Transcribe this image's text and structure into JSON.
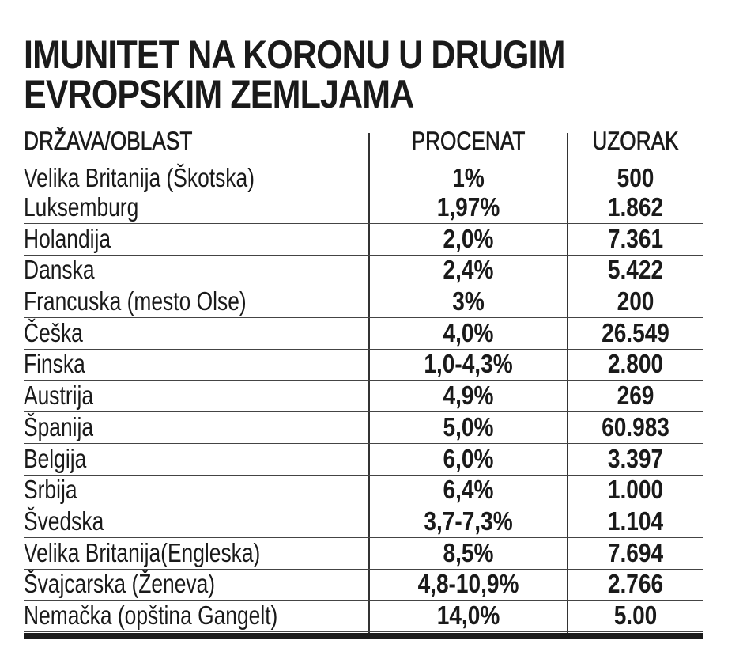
{
  "title_line1": "IMUNITET NA KORONU U DRUGIM",
  "title_line2": "EVROPSKIM ZEMLJAMA",
  "chart_data": {
    "type": "table",
    "title": "IMUNITET NA KORONU U DRUGIM EVROPSKIM ZEMLJAMA",
    "columns": [
      "DRŽAVA/OBLAST",
      "PROCENAT",
      "UZORAK"
    ],
    "rows": [
      [
        "Velika Britanija (Škotska)",
        "1%",
        "500"
      ],
      [
        "Luksemburg",
        "1,97%",
        "1.862"
      ],
      [
        "Holandija",
        "2,0%",
        "7.361"
      ],
      [
        "Danska",
        "2,4%",
        "5.422"
      ],
      [
        "Francuska (mesto Olse)",
        "3%",
        "200"
      ],
      [
        "Češka",
        "4,0%",
        "26.549"
      ],
      [
        "Finska",
        "1,0-4,3%",
        "2.800"
      ],
      [
        "Austrija",
        "4,9%",
        "269"
      ],
      [
        "Španija",
        "5,0%",
        "60.983"
      ],
      [
        "Belgija",
        "6,0%",
        "3.397"
      ],
      [
        "Srbija",
        "6,4%",
        "1.000"
      ],
      [
        "Švedska",
        "3,7-7,3%",
        "1.104"
      ],
      [
        "Velika Britanija(Engleska)",
        "8,5%",
        "7.694"
      ],
      [
        "Švajcarska (Ženeva)",
        "4,8-10,9%",
        "2.766"
      ],
      [
        "Nemačka (opština Gangelt)",
        "14,0%",
        "5.00"
      ]
    ]
  }
}
